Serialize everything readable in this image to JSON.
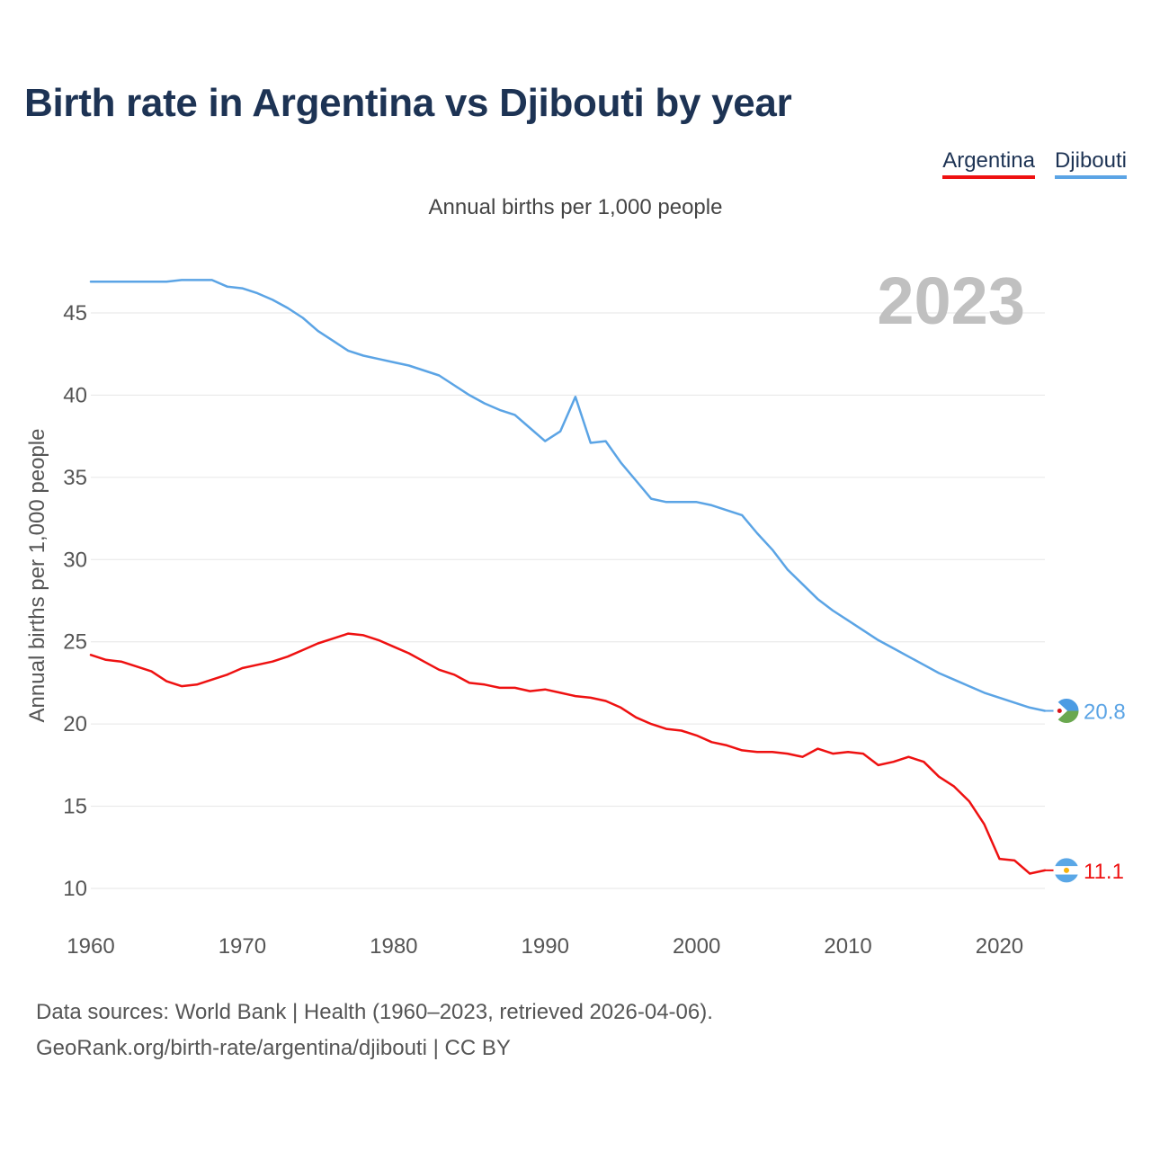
{
  "title": "Birth rate in Argentina vs Djibouti by year",
  "subtitle": "Annual births per 1,000 people",
  "legend": [
    {
      "name": "Argentina",
      "color": "#ee1111"
    },
    {
      "name": "Djibouti",
      "color": "#5ba4e5"
    }
  ],
  "year_label": "2023",
  "source": {
    "line1": "Data sources: World Bank | Health (1960–2023, retrieved 2026-04-06).",
    "line2": "GeoRank.org/birth-rate/argentina/djibouti | CC BY"
  },
  "chart_data": {
    "type": "line",
    "title": "Birth rate in Argentina vs Djibouti by year",
    "xlabel": "",
    "ylabel": "Annual births per 1,000 people",
    "xlim": [
      1960,
      2023
    ],
    "ylim": [
      10,
      47
    ],
    "x_ticks": [
      1960,
      1970,
      1980,
      1990,
      2000,
      2010,
      2020
    ],
    "y_ticks": [
      10,
      15,
      20,
      25,
      30,
      35,
      40,
      45
    ],
    "grid": true,
    "legend_position": "top-right",
    "x": [
      1960,
      1961,
      1962,
      1963,
      1964,
      1965,
      1966,
      1967,
      1968,
      1969,
      1970,
      1971,
      1972,
      1973,
      1974,
      1975,
      1976,
      1977,
      1978,
      1979,
      1980,
      1981,
      1982,
      1983,
      1984,
      1985,
      1986,
      1987,
      1988,
      1989,
      1990,
      1991,
      1992,
      1993,
      1994,
      1995,
      1996,
      1997,
      1998,
      1999,
      2000,
      2001,
      2002,
      2003,
      2004,
      2005,
      2006,
      2007,
      2008,
      2009,
      2010,
      2011,
      2012,
      2013,
      2014,
      2015,
      2016,
      2017,
      2018,
      2019,
      2020,
      2021,
      2022,
      2023
    ],
    "series": [
      {
        "name": "Argentina",
        "color": "#ee1111",
        "end_label": "11.1",
        "flag": "argentina",
        "values": [
          24.2,
          23.9,
          23.8,
          23.5,
          23.2,
          22.6,
          22.3,
          22.4,
          22.7,
          23.0,
          23.4,
          23.6,
          23.8,
          24.1,
          24.5,
          24.9,
          25.2,
          25.5,
          25.4,
          25.1,
          24.7,
          24.3,
          23.8,
          23.3,
          23.0,
          22.5,
          22.4,
          22.2,
          22.2,
          22.0,
          22.1,
          21.9,
          21.7,
          21.6,
          21.4,
          21.0,
          20.4,
          20.0,
          19.7,
          19.6,
          19.3,
          18.9,
          18.7,
          18.4,
          18.3,
          18.3,
          18.2,
          18.0,
          18.5,
          18.2,
          18.3,
          18.2,
          17.5,
          17.7,
          18.0,
          17.7,
          16.8,
          16.2,
          15.3,
          13.9,
          11.8,
          11.7,
          10.9,
          11.1
        ]
      },
      {
        "name": "Djibouti",
        "color": "#5ba4e5",
        "end_label": "20.8",
        "flag": "djibouti",
        "values": [
          46.9,
          46.9,
          46.9,
          46.9,
          46.9,
          46.9,
          47.0,
          47.0,
          47.0,
          46.6,
          46.5,
          46.2,
          45.8,
          45.3,
          44.7,
          43.9,
          43.3,
          42.7,
          42.4,
          42.2,
          42.0,
          41.8,
          41.5,
          41.2,
          40.6,
          40.0,
          39.5,
          39.1,
          38.8,
          38.0,
          37.2,
          37.8,
          39.9,
          37.1,
          37.2,
          35.9,
          34.8,
          33.7,
          33.5,
          33.5,
          33.5,
          33.3,
          33.0,
          32.7,
          31.6,
          30.6,
          29.4,
          28.5,
          27.6,
          26.9,
          26.3,
          25.7,
          25.1,
          24.6,
          24.1,
          23.6,
          23.1,
          22.7,
          22.3,
          21.9,
          21.6,
          21.3,
          21.0,
          20.8
        ]
      }
    ]
  }
}
